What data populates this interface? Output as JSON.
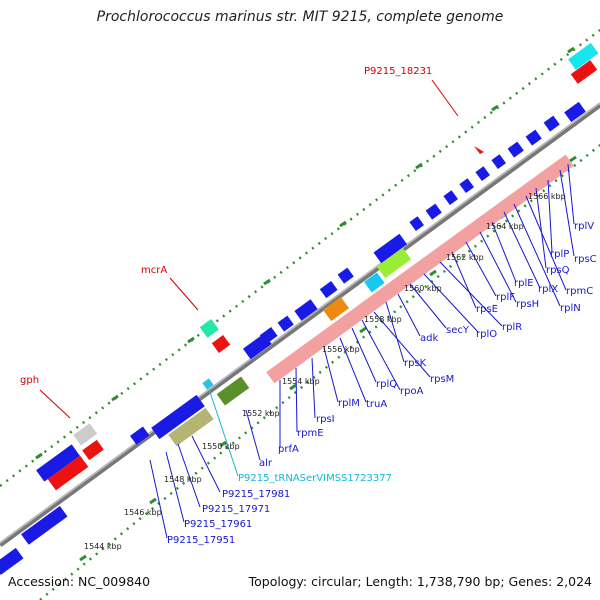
{
  "title": "Prochlorococcus marinus str. MIT 9215, complete genome",
  "footer": {
    "accession": "Accession: NC_009840",
    "summary": "Topology: circular; Length: 1,738,790 bp; Genes: 2,024"
  },
  "colors": {
    "cds": "#1a1ae6",
    "rrna": "#ee1111",
    "operon": "#f2a0a0",
    "backbone": "#888888",
    "tick": "#2f8f2f",
    "blue_label": "#1616d6",
    "red_label": "#d40000",
    "trna_label": "#11b7d6"
  },
  "scale_labels": [
    "1544 kbp",
    "1546 kbp",
    "1548 kbp",
    "1550 kbp",
    "1552 kbp",
    "1554 kbp",
    "1556 kbp",
    "1558 kbp",
    "1560 kbp",
    "1562 kbp",
    "1564 kbp",
    "1566 kbp"
  ],
  "red_labels": [
    "gph",
    "mcrA",
    "P9215_18231"
  ],
  "blue_labels": [
    "P9215_17951",
    "P9215_17961",
    "P9215_17971",
    "P9215_17981",
    "alr",
    "prfA",
    "rpmE",
    "rpsI",
    "rplM",
    "truA",
    "rplQ",
    "rpoA",
    "rpsM",
    "rpsK",
    "adk",
    "secY",
    "rplO",
    "rplR",
    "rpsE",
    "rplF",
    "rpsH",
    "rplX",
    "rplE",
    "rplN",
    "rpmC",
    "rpsQ",
    "rplP",
    "rpsC",
    "rplV"
  ],
  "trna_label": "P9215_tRNASerVIMSS1723377"
}
